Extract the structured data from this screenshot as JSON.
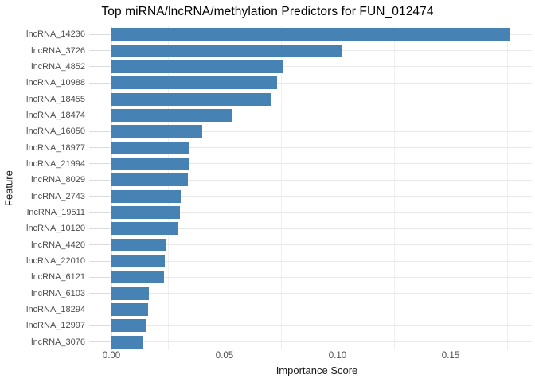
{
  "chart_data": {
    "type": "bar",
    "orientation": "horizontal",
    "title": "Top miRNA/lncRNA/methylation Predictors for FUN_012474",
    "xlabel": "Importance Score",
    "ylabel": "Feature",
    "categories": [
      "lncRNA_14236",
      "lncRNA_3726",
      "lncRNA_4852",
      "lncRNA_10988",
      "lncRNA_18455",
      "lncRNA_18474",
      "lncRNA_16050",
      "lncRNA_18977",
      "lncRNA_21994",
      "lncRNA_8029",
      "lncRNA_2743",
      "lncRNA_19511",
      "lncRNA_10120",
      "lncRNA_4420",
      "lncRNA_22010",
      "lncRNA_6121",
      "lncRNA_6103",
      "lncRNA_18294",
      "lncRNA_12997",
      "lncRNA_3076"
    ],
    "values": [
      0.1761,
      0.1018,
      0.0757,
      0.0731,
      0.0704,
      0.0534,
      0.04,
      0.0344,
      0.034,
      0.0338,
      0.0307,
      0.0302,
      0.0297,
      0.0242,
      0.0235,
      0.0233,
      0.0167,
      0.0162,
      0.0152,
      0.0142
    ],
    "x_ticks": [
      0,
      0.05,
      0.1,
      0.15
    ],
    "x_tick_labels": [
      "0.00",
      "0.05",
      "0.10",
      "0.15"
    ],
    "x_minor_ticks": [
      0.025,
      0.075,
      0.125,
      0.175
    ],
    "xlim": [
      -0.0042,
      0.1859
    ],
    "grid": true,
    "legend": "none",
    "bar_color": "#4682B4",
    "major_grid_color": "#e2e2e2",
    "minor_grid_color": "#efefef",
    "background_color": "#ffffff"
  }
}
